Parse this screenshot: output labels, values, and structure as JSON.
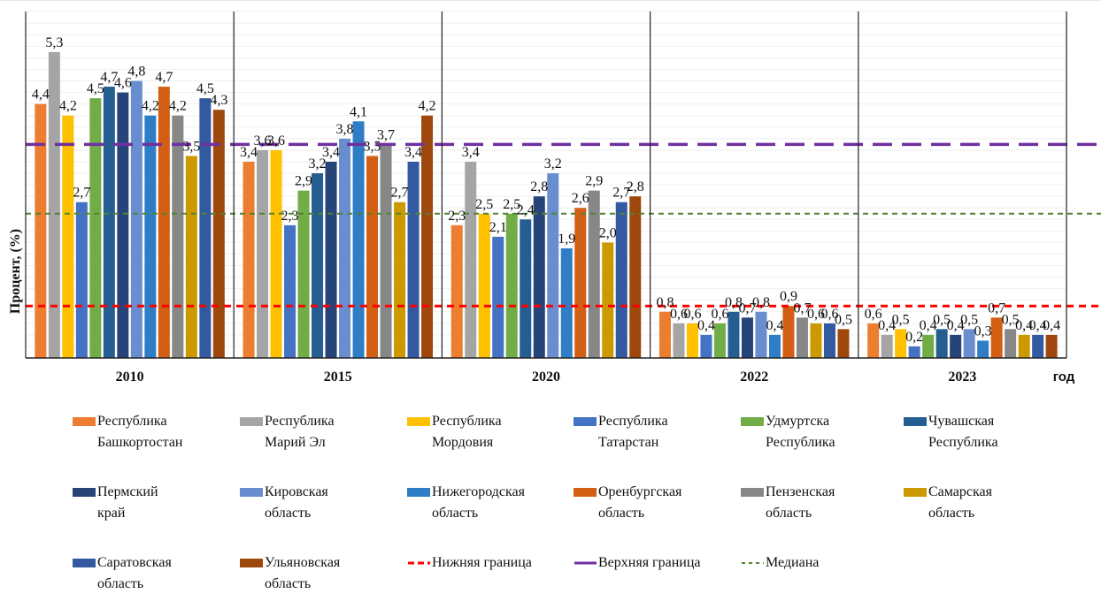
{
  "chart_data": {
    "type": "bar",
    "title": "",
    "xlabel": "год",
    "ylabel": "Процент, (%)",
    "ylim": [
      0,
      6
    ],
    "grid": true,
    "categories": [
      "2010",
      "2015",
      "2020",
      "2022",
      "2023"
    ],
    "series": [
      {
        "name": "Республика Башкортостан",
        "legend_lines": "Республика\nБашкортостан",
        "color": "#ED7D31",
        "values": [
          4.4,
          3.4,
          2.3,
          0.8,
          0.6
        ],
        "labels": [
          "4,4",
          "3,4",
          "2,3",
          "0,8",
          "0,6"
        ]
      },
      {
        "name": "Республика Марий Эл",
        "legend_lines": "Республика\nМарий Эл",
        "color": "#A5A5A5",
        "values": [
          5.3,
          3.6,
          3.4,
          0.6,
          0.4
        ],
        "labels": [
          "5,3",
          "3,6",
          "3,4",
          "0,6",
          "0,4"
        ]
      },
      {
        "name": "Республика Мордовия",
        "legend_lines": "Республика\nМордовия",
        "color": "#FFC000",
        "values": [
          4.2,
          3.6,
          2.5,
          0.6,
          0.5
        ],
        "labels": [
          "4,2",
          "3,6",
          "2,5",
          "0,6",
          "0,5"
        ]
      },
      {
        "name": "Республика Татарстан",
        "legend_lines": "Республика\nТатарстан",
        "color": "#4472C4",
        "values": [
          2.7,
          2.3,
          2.1,
          0.4,
          0.2
        ],
        "labels": [
          "2,7",
          "2,3",
          "2,1",
          "0,4",
          "0,2"
        ]
      },
      {
        "name": "Удмуртска Республика",
        "legend_lines": "Удмуртска\nРеспублика",
        "color": "#70AD47",
        "values": [
          4.5,
          2.9,
          2.5,
          0.6,
          0.4
        ],
        "labels": [
          "4,5",
          "2,9",
          "2,5",
          "0,6",
          "0,4"
        ]
      },
      {
        "name": "Чувашская Республика",
        "legend_lines": "Чувашская\nРеспублика",
        "color": "#255E91",
        "values": [
          4.7,
          3.2,
          2.4,
          0.8,
          0.5
        ],
        "labels": [
          "4,7",
          "3,2",
          "2,4",
          "0,8",
          "0,5"
        ]
      },
      {
        "name": "Пермский край",
        "legend_lines": "Пермский\nкрай",
        "color": "#264478",
        "values": [
          4.6,
          3.4,
          2.8,
          0.7,
          0.4
        ],
        "labels": [
          "4,6",
          "3,4",
          "2,8",
          "0,7",
          "0,4"
        ]
      },
      {
        "name": "Кировская область",
        "legend_lines": "Кировская\nобласть",
        "color": "#698ED0",
        "values": [
          4.8,
          3.8,
          3.2,
          0.8,
          0.5
        ],
        "labels": [
          "4,8",
          "3,8",
          "3,2",
          "0,8",
          "0,5"
        ]
      },
      {
        "name": "Нижегородская область",
        "legend_lines": "Нижегородская\nобласть",
        "color": "#2F7DC4",
        "values": [
          4.2,
          4.1,
          1.9,
          0.4,
          0.3
        ],
        "labels": [
          "4,2",
          "4,1",
          "1,9",
          "0,4",
          "0,3"
        ]
      },
      {
        "name": "Оренбургская область",
        "legend_lines": "Оренбургская\nобласть",
        "color": "#D35F14",
        "values": [
          4.7,
          3.5,
          2.6,
          0.9,
          0.7
        ],
        "labels": [
          "4,7",
          "3,5",
          "2,6",
          "0,9",
          "0,7"
        ]
      },
      {
        "name": "Пензенская область",
        "legend_lines": "Пензенская\nобласть",
        "color": "#878787",
        "values": [
          4.2,
          3.7,
          2.9,
          0.7,
          0.5
        ],
        "labels": [
          "4,2",
          "3,7",
          "2,9",
          "0,7",
          "0,5"
        ]
      },
      {
        "name": "Самарская область",
        "legend_lines": "Самарская\nобласть",
        "color": "#CC9A00",
        "values": [
          3.5,
          2.7,
          2.0,
          0.6,
          0.4
        ],
        "labels": [
          "3,5",
          "2,7",
          "2,0",
          "0,6",
          "0,4"
        ]
      },
      {
        "name": "Саратовская область",
        "legend_lines": "Саратовская\nобласть",
        "color": "#335AA1",
        "values": [
          4.5,
          3.4,
          2.7,
          0.6,
          0.4
        ],
        "labels": [
          "4,5",
          "3,4",
          "2,7",
          "0,6",
          "0,4"
        ]
      },
      {
        "name": "Ульяновская область",
        "legend_lines": "Ульяновская\nобласть",
        "color": "#9E480E",
        "values": [
          4.3,
          4.2,
          2.8,
          0.5,
          0.4
        ],
        "labels": [
          "4,3",
          "4,2",
          "2,8",
          "0,5",
          "0,4"
        ]
      }
    ],
    "reference_lines": [
      {
        "name": "Нижняя граница",
        "value": 0.9,
        "color": "#FF0000",
        "style": "dashed"
      },
      {
        "name": "Верхняя граница",
        "value": 3.7,
        "color": "#7030A0",
        "style": "long-dashed"
      },
      {
        "name": "Медиана",
        "value": 2.5,
        "color": "#548235",
        "style": "short-dashed"
      }
    ],
    "legend_position": "bottom"
  }
}
